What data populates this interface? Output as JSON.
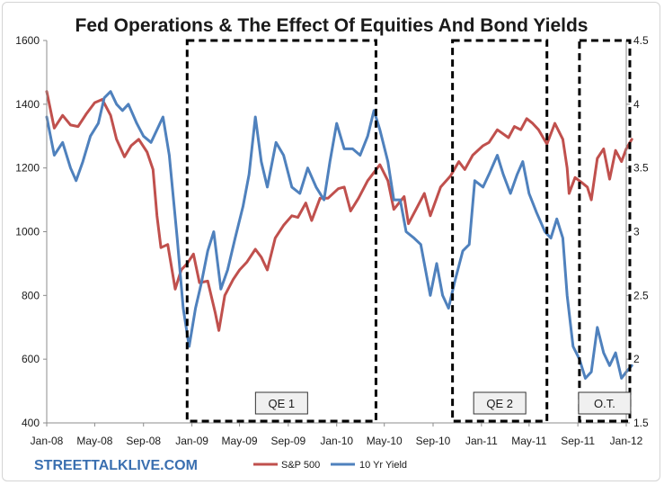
{
  "chart_data": {
    "type": "line",
    "title": "Fed Operations & The Effect Of Equities And Bond Yields",
    "x_categories": [
      "Jan-08",
      "May-08",
      "Sep-08",
      "Jan-09",
      "May-09",
      "Sep-09",
      "Jan-10",
      "May-10",
      "Sep-10",
      "Jan-11",
      "May-11",
      "Sep-11",
      "Jan-12"
    ],
    "x_range": [
      "2008-01",
      "2012-01"
    ],
    "y_left": {
      "lim": [
        400,
        1600
      ],
      "ticks": [
        "400",
        "600",
        "800",
        "1000",
        "1200",
        "1400",
        "1600"
      ]
    },
    "y_right": {
      "lim": [
        1.5,
        4.5
      ],
      "ticks": [
        "1.5",
        "2",
        "2.5",
        "3",
        "3.5",
        "4",
        "4.5"
      ]
    },
    "grid": "none",
    "legend_position": "bottom",
    "series": [
      {
        "name": "S&P 500",
        "axis": "left",
        "color": "#c0504d",
        "points": [
          [
            "2008-01-01",
            1440
          ],
          [
            "2008-01-20",
            1325
          ],
          [
            "2008-02-10",
            1365
          ],
          [
            "2008-03-01",
            1335
          ],
          [
            "2008-03-20",
            1330
          ],
          [
            "2008-04-10",
            1370
          ],
          [
            "2008-05-01",
            1405
          ],
          [
            "2008-05-20",
            1415
          ],
          [
            "2008-06-10",
            1365
          ],
          [
            "2008-06-25",
            1290
          ],
          [
            "2008-07-15",
            1235
          ],
          [
            "2008-08-01",
            1270
          ],
          [
            "2008-08-20",
            1290
          ],
          [
            "2008-09-10",
            1250
          ],
          [
            "2008-09-25",
            1195
          ],
          [
            "2008-10-05",
            1050
          ],
          [
            "2008-10-15",
            950
          ],
          [
            "2008-11-01",
            960
          ],
          [
            "2008-11-20",
            820
          ],
          [
            "2008-12-05",
            880
          ],
          [
            "2008-12-20",
            900
          ],
          [
            "2009-01-05",
            930
          ],
          [
            "2009-01-20",
            840
          ],
          [
            "2009-02-10",
            845
          ],
          [
            "2009-03-01",
            745
          ],
          [
            "2009-03-10",
            690
          ],
          [
            "2009-03-25",
            800
          ],
          [
            "2009-04-15",
            850
          ],
          [
            "2009-05-01",
            880
          ],
          [
            "2009-05-20",
            905
          ],
          [
            "2009-06-10",
            945
          ],
          [
            "2009-06-25",
            920
          ],
          [
            "2009-07-10",
            880
          ],
          [
            "2009-07-30",
            980
          ],
          [
            "2009-08-20",
            1020
          ],
          [
            "2009-09-10",
            1050
          ],
          [
            "2009-09-25",
            1045
          ],
          [
            "2009-10-15",
            1090
          ],
          [
            "2009-10-30",
            1035
          ],
          [
            "2009-11-20",
            1105
          ],
          [
            "2009-12-10",
            1105
          ],
          [
            "2010-01-05",
            1135
          ],
          [
            "2010-01-20",
            1140
          ],
          [
            "2010-02-05",
            1065
          ],
          [
            "2010-02-25",
            1105
          ],
          [
            "2010-03-20",
            1160
          ],
          [
            "2010-04-20",
            1210
          ],
          [
            "2010-05-10",
            1160
          ],
          [
            "2010-05-25",
            1070
          ],
          [
            "2010-06-20",
            1110
          ],
          [
            "2010-07-01",
            1025
          ],
          [
            "2010-07-20",
            1070
          ],
          [
            "2010-08-10",
            1120
          ],
          [
            "2010-08-25",
            1050
          ],
          [
            "2010-09-20",
            1140
          ],
          [
            "2010-10-15",
            1175
          ],
          [
            "2010-11-05",
            1220
          ],
          [
            "2010-11-20",
            1195
          ],
          [
            "2010-12-10",
            1240
          ],
          [
            "2011-01-05",
            1270
          ],
          [
            "2011-01-20",
            1280
          ],
          [
            "2011-02-10",
            1320
          ],
          [
            "2011-03-10",
            1295
          ],
          [
            "2011-03-25",
            1330
          ],
          [
            "2011-04-10",
            1320
          ],
          [
            "2011-04-25",
            1355
          ],
          [
            "2011-05-10",
            1340
          ],
          [
            "2011-05-25",
            1320
          ],
          [
            "2011-06-15",
            1275
          ],
          [
            "2011-07-05",
            1340
          ],
          [
            "2011-07-25",
            1290
          ],
          [
            "2011-08-05",
            1200
          ],
          [
            "2011-08-10",
            1120
          ],
          [
            "2011-08-25",
            1170
          ],
          [
            "2011-09-10",
            1155
          ],
          [
            "2011-09-25",
            1140
          ],
          [
            "2011-10-05",
            1100
          ],
          [
            "2011-10-20",
            1230
          ],
          [
            "2011-11-05",
            1260
          ],
          [
            "2011-11-20",
            1165
          ],
          [
            "2011-12-05",
            1255
          ],
          [
            "2011-12-20",
            1220
          ],
          [
            "2012-01-01",
            1260
          ],
          [
            "2012-01-15",
            1290
          ]
        ]
      },
      {
        "name": "10 Yr Yield",
        "axis": "right",
        "color": "#4f81bd",
        "points": [
          [
            "2008-01-01",
            3.9
          ],
          [
            "2008-01-20",
            3.6
          ],
          [
            "2008-02-10",
            3.7
          ],
          [
            "2008-03-01",
            3.5
          ],
          [
            "2008-03-15",
            3.4
          ],
          [
            "2008-04-01",
            3.55
          ],
          [
            "2008-04-20",
            3.75
          ],
          [
            "2008-05-10",
            3.85
          ],
          [
            "2008-05-25",
            4.05
          ],
          [
            "2008-06-10",
            4.1
          ],
          [
            "2008-06-25",
            4.0
          ],
          [
            "2008-07-10",
            3.95
          ],
          [
            "2008-07-25",
            4.0
          ],
          [
            "2008-08-15",
            3.85
          ],
          [
            "2008-09-01",
            3.75
          ],
          [
            "2008-09-20",
            3.7
          ],
          [
            "2008-10-05",
            3.8
          ],
          [
            "2008-10-20",
            3.9
          ],
          [
            "2008-11-05",
            3.6
          ],
          [
            "2008-11-25",
            2.95
          ],
          [
            "2008-12-10",
            2.4
          ],
          [
            "2008-12-25",
            2.1
          ],
          [
            "2009-01-10",
            2.4
          ],
          [
            "2009-01-25",
            2.6
          ],
          [
            "2009-02-10",
            2.85
          ],
          [
            "2009-02-25",
            3.0
          ],
          [
            "2009-03-15",
            2.55
          ],
          [
            "2009-04-01",
            2.7
          ],
          [
            "2009-04-20",
            2.95
          ],
          [
            "2009-05-10",
            3.2
          ],
          [
            "2009-05-25",
            3.45
          ],
          [
            "2009-06-10",
            3.9
          ],
          [
            "2009-06-25",
            3.55
          ],
          [
            "2009-07-10",
            3.35
          ],
          [
            "2009-08-01",
            3.7
          ],
          [
            "2009-08-20",
            3.6
          ],
          [
            "2009-09-10",
            3.35
          ],
          [
            "2009-09-30",
            3.3
          ],
          [
            "2009-10-20",
            3.5
          ],
          [
            "2009-11-10",
            3.35
          ],
          [
            "2009-11-30",
            3.25
          ],
          [
            "2009-12-15",
            3.55
          ],
          [
            "2010-01-01",
            3.85
          ],
          [
            "2010-01-20",
            3.65
          ],
          [
            "2010-02-10",
            3.65
          ],
          [
            "2010-03-01",
            3.6
          ],
          [
            "2010-03-20",
            3.75
          ],
          [
            "2010-04-05",
            3.95
          ],
          [
            "2010-04-20",
            3.8
          ],
          [
            "2010-05-10",
            3.55
          ],
          [
            "2010-05-25",
            3.25
          ],
          [
            "2010-06-10",
            3.25
          ],
          [
            "2010-06-25",
            3.0
          ],
          [
            "2010-07-15",
            2.95
          ],
          [
            "2010-08-01",
            2.9
          ],
          [
            "2010-08-25",
            2.5
          ],
          [
            "2010-09-10",
            2.75
          ],
          [
            "2010-09-25",
            2.5
          ],
          [
            "2010-10-10",
            2.4
          ],
          [
            "2010-10-25",
            2.6
          ],
          [
            "2010-11-15",
            2.85
          ],
          [
            "2010-12-01",
            2.9
          ],
          [
            "2010-12-15",
            3.4
          ],
          [
            "2011-01-05",
            3.35
          ],
          [
            "2011-01-20",
            3.45
          ],
          [
            "2011-02-10",
            3.6
          ],
          [
            "2011-02-25",
            3.45
          ],
          [
            "2011-03-15",
            3.3
          ],
          [
            "2011-04-01",
            3.45
          ],
          [
            "2011-04-15",
            3.55
          ],
          [
            "2011-05-01",
            3.3
          ],
          [
            "2011-05-20",
            3.15
          ],
          [
            "2011-06-10",
            3.0
          ],
          [
            "2011-06-25",
            2.95
          ],
          [
            "2011-07-10",
            3.1
          ],
          [
            "2011-07-25",
            2.95
          ],
          [
            "2011-08-05",
            2.5
          ],
          [
            "2011-08-20",
            2.1
          ],
          [
            "2011-09-05",
            2.0
          ],
          [
            "2011-09-20",
            1.85
          ],
          [
            "2011-10-05",
            1.9
          ],
          [
            "2011-10-20",
            2.25
          ],
          [
            "2011-11-05",
            2.05
          ],
          [
            "2011-11-20",
            1.95
          ],
          [
            "2011-12-05",
            2.05
          ],
          [
            "2011-12-20",
            1.85
          ],
          [
            "2012-01-01",
            1.9
          ],
          [
            "2012-01-15",
            1.95
          ]
        ]
      }
    ],
    "annotations": [
      {
        "label": "QE 1",
        "start": "2008-12-20",
        "end": "2010-04-10"
      },
      {
        "label": "QE 2",
        "start": "2010-10-20",
        "end": "2011-06-15"
      },
      {
        "label": "O.T.",
        "start": "2011-09-05",
        "end": "2012-01-10"
      }
    ]
  },
  "brand": {
    "text": "STREETTALKLIVE.COM"
  },
  "colors": {
    "sp500": "#c0504d",
    "yield": "#4f81bd",
    "brand": "#3a6fb0",
    "box_fill": "#f0f0f0"
  }
}
